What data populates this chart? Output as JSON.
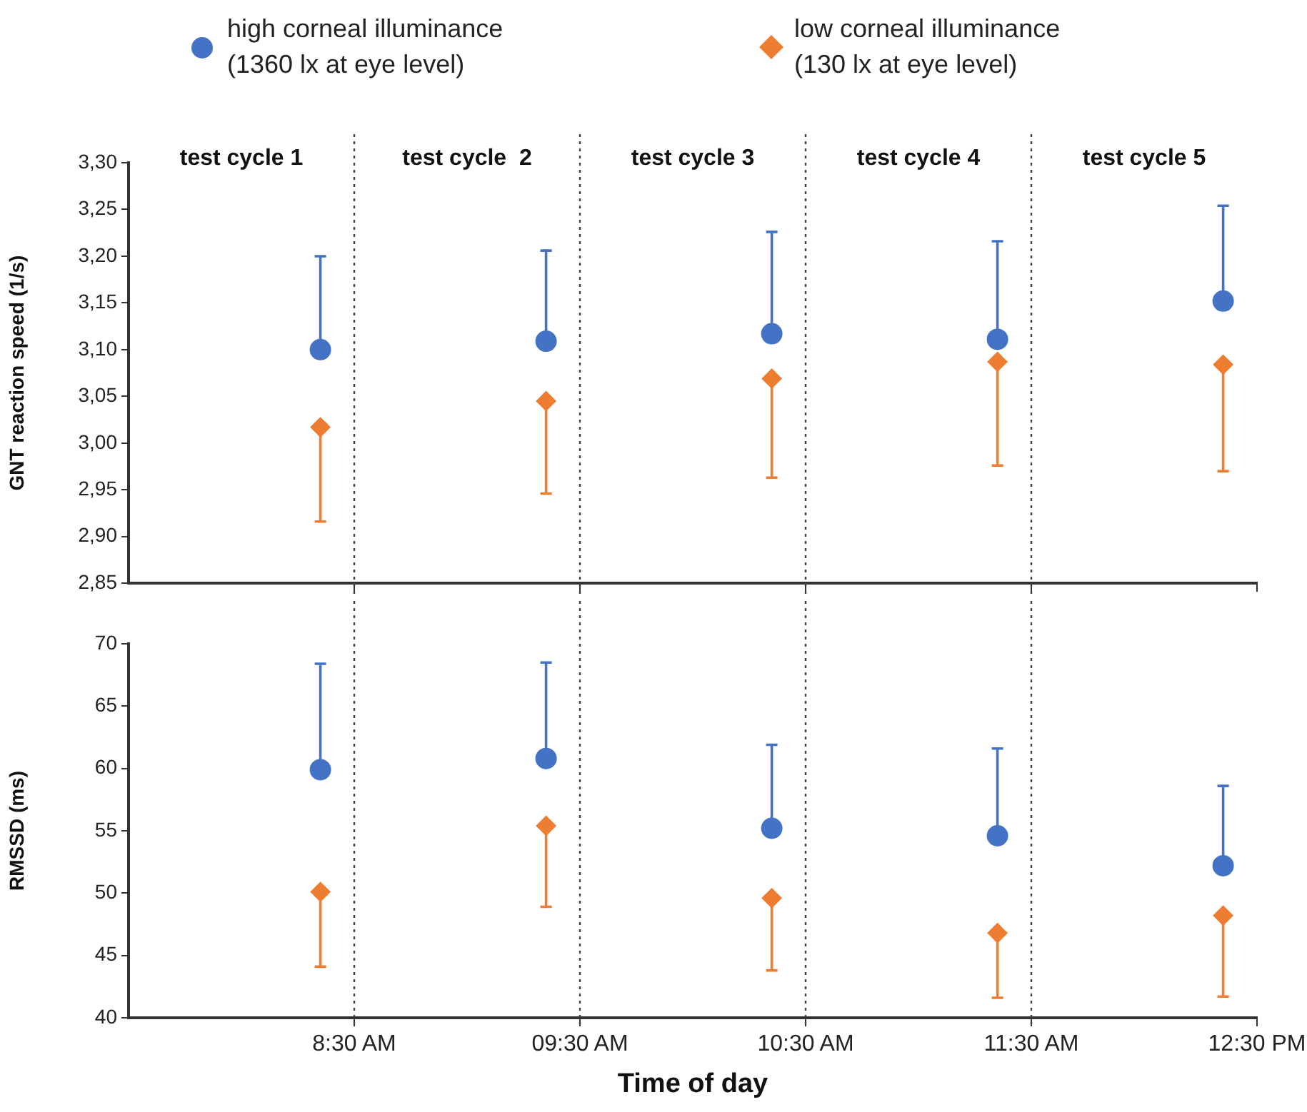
{
  "chart_data": [
    {
      "type": "scatter",
      "ylabel": "GNT reaction speed (1/s)",
      "x": [
        8.35,
        9.35,
        10.35,
        11.35,
        12.35
      ],
      "xlim": [
        7.5,
        12.5
      ],
      "xticks": [
        {
          "value": 8.5,
          "label": null
        },
        {
          "value": 9.5,
          "label": null
        },
        {
          "value": 10.5,
          "label": null
        },
        {
          "value": 11.5,
          "label": null
        },
        {
          "value": 12.5,
          "label": null
        }
      ],
      "ylim": [
        2.85,
        3.3
      ],
      "yticks": [
        {
          "value": 2.85,
          "label": "2,85"
        },
        {
          "value": 2.9,
          "label": "2,90"
        },
        {
          "value": 2.95,
          "label": "2,95"
        },
        {
          "value": 3.0,
          "label": "3,00"
        },
        {
          "value": 3.05,
          "label": "3,05"
        },
        {
          "value": 3.1,
          "label": "3,10"
        },
        {
          "value": 3.15,
          "label": "3,15"
        },
        {
          "value": 3.2,
          "label": "3,20"
        },
        {
          "value": 3.25,
          "label": "3,25"
        },
        {
          "value": 3.3,
          "label": "3,30"
        }
      ],
      "tick_labels": "y",
      "legend": "top",
      "grid": false,
      "ref_lines": [
        {
          "axis": "x",
          "value": 8.5,
          "color": "#404040",
          "line_style": "dotted"
        },
        {
          "axis": "x",
          "value": 9.5,
          "color": "#404040",
          "line_style": "dotted"
        },
        {
          "axis": "x",
          "value": 10.5,
          "color": "#404040",
          "line_style": "dotted"
        },
        {
          "axis": "x",
          "value": 11.5,
          "color": "#404040",
          "line_style": "dotted"
        }
      ],
      "annotations": [
        "test cycle 1",
        "test cycle  2",
        "test cycle 3",
        "test cycle 4",
        "test cycle 5"
      ],
      "series": [
        {
          "name": "high corneal illuminance (1360 lx at eye level)",
          "color": "#4472c4",
          "marker": "circle",
          "values": [
            3.1,
            3.109,
            3.117,
            3.111,
            3.152
          ],
          "errors": [
            [
              3.1,
              3.2
            ],
            [
              3.109,
              3.206
            ],
            [
              3.117,
              3.226
            ],
            [
              3.111,
              3.216
            ],
            [
              3.152,
              3.254
            ]
          ]
        },
        {
          "name": "low corneal illuminance (130 lx at eye level)",
          "color": "#ed7d31",
          "marker": "diamond",
          "values": [
            3.017,
            3.045,
            3.069,
            3.087,
            3.084
          ],
          "errors": [
            [
              2.916,
              3.017
            ],
            [
              2.946,
              3.045
            ],
            [
              2.963,
              3.069
            ],
            [
              2.976,
              3.087
            ],
            [
              2.97,
              3.084
            ]
          ]
        }
      ]
    },
    {
      "type": "scatter",
      "ylabel": "RMSSD (ms)",
      "xlabel": "Time of day",
      "x": [
        8.35,
        9.35,
        10.35,
        11.35,
        12.35
      ],
      "xlim": [
        7.5,
        12.5
      ],
      "xticks": [
        {
          "value": 8.5,
          "label": "8:30 AM"
        },
        {
          "value": 9.5,
          "label": "09:30 AM"
        },
        {
          "value": 10.5,
          "label": "10:30 AM"
        },
        {
          "value": 11.5,
          "label": "11:30 AM"
        },
        {
          "value": 12.5,
          "label": "12:30 PM"
        }
      ],
      "ylim": [
        40,
        70
      ],
      "yticks": [
        40,
        45,
        50,
        55,
        60,
        65,
        70
      ],
      "grid": false,
      "ref_lines": [
        {
          "axis": "x",
          "value": 8.5,
          "color": "#404040",
          "line_style": "dotted"
        },
        {
          "axis": "x",
          "value": 9.5,
          "color": "#404040",
          "line_style": "dotted"
        },
        {
          "axis": "x",
          "value": 10.5,
          "color": "#404040",
          "line_style": "dotted"
        },
        {
          "axis": "x",
          "value": 11.5,
          "color": "#404040",
          "line_style": "dotted"
        }
      ],
      "series": [
        {
          "color": "#4472c4",
          "marker": "circle",
          "values": [
            59.9,
            60.8,
            55.2,
            54.6,
            52.2
          ],
          "errors": [
            [
              59.9,
              68.4
            ],
            [
              60.8,
              68.5
            ],
            [
              55.2,
              61.9
            ],
            [
              54.6,
              61.6
            ],
            [
              52.2,
              58.6
            ]
          ]
        },
        {
          "color": "#ed7d31",
          "marker": "diamond",
          "values": [
            50.1,
            55.4,
            49.6,
            46.8,
            48.2
          ],
          "errors": [
            [
              44.1,
              50.1
            ],
            [
              48.9,
              55.4
            ],
            [
              43.8,
              49.6
            ],
            [
              41.6,
              46.8
            ],
            [
              41.7,
              48.2
            ]
          ]
        }
      ]
    }
  ]
}
